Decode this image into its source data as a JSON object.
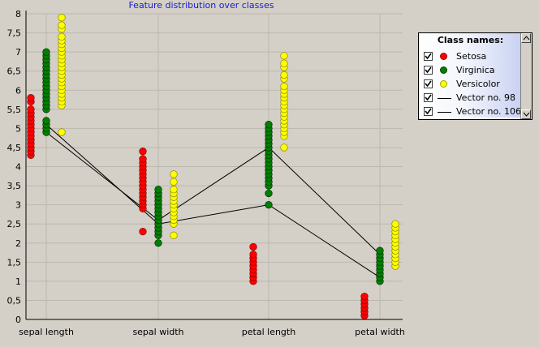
{
  "chart_data": {
    "type": "scatter",
    "title": "Feature distribution over classes",
    "categories": [
      "sepal length",
      "sepal width",
      "petal length",
      "petal width"
    ],
    "ylim": [
      0,
      8
    ],
    "yticks": [
      "0",
      "0,5",
      "1",
      "1,5",
      "2",
      "2,5",
      "3",
      "3,5",
      "4",
      "4,5",
      "5",
      "5,5",
      "6",
      "6,5",
      "7",
      "7,5",
      "8"
    ],
    "series": [
      {
        "name": "Setosa",
        "kind": "points",
        "color": "#ff0000",
        "points": [
          [
            0,
            4.3
          ],
          [
            0,
            4.4
          ],
          [
            0,
            4.5
          ],
          [
            0,
            4.6
          ],
          [
            0,
            4.7
          ],
          [
            0,
            4.8
          ],
          [
            0,
            4.9
          ],
          [
            0,
            5.0
          ],
          [
            0,
            5.1
          ],
          [
            0,
            5.2
          ],
          [
            0,
            5.3
          ],
          [
            0,
            5.4
          ],
          [
            0,
            5.5
          ],
          [
            0,
            5.7
          ],
          [
            0,
            5.8
          ],
          [
            1,
            2.3
          ],
          [
            1,
            2.9
          ],
          [
            1,
            3.0
          ],
          [
            1,
            3.1
          ],
          [
            1,
            3.2
          ],
          [
            1,
            3.3
          ],
          [
            1,
            3.4
          ],
          [
            1,
            3.5
          ],
          [
            1,
            3.6
          ],
          [
            1,
            3.7
          ],
          [
            1,
            3.8
          ],
          [
            1,
            3.9
          ],
          [
            1,
            4.0
          ],
          [
            1,
            4.1
          ],
          [
            1,
            4.2
          ],
          [
            1,
            4.4
          ],
          [
            2,
            1.0
          ],
          [
            2,
            1.1
          ],
          [
            2,
            1.2
          ],
          [
            2,
            1.3
          ],
          [
            2,
            1.4
          ],
          [
            2,
            1.5
          ],
          [
            2,
            1.6
          ],
          [
            2,
            1.7
          ],
          [
            2,
            1.9
          ],
          [
            3,
            0.1
          ],
          [
            3,
            0.2
          ],
          [
            3,
            0.3
          ],
          [
            3,
            0.4
          ],
          [
            3,
            0.5
          ],
          [
            3,
            0.6
          ]
        ]
      },
      {
        "name": "Virginica",
        "kind": "points",
        "color": "#008000",
        "points": [
          [
            0,
            4.9
          ],
          [
            0,
            5.0
          ],
          [
            0,
            5.1
          ],
          [
            0,
            5.2
          ],
          [
            0,
            5.5
          ],
          [
            0,
            5.6
          ],
          [
            0,
            5.7
          ],
          [
            0,
            5.8
          ],
          [
            0,
            5.9
          ],
          [
            0,
            6.0
          ],
          [
            0,
            6.1
          ],
          [
            0,
            6.2
          ],
          [
            0,
            6.3
          ],
          [
            0,
            6.4
          ],
          [
            0,
            6.5
          ],
          [
            0,
            6.6
          ],
          [
            0,
            6.7
          ],
          [
            0,
            6.8
          ],
          [
            0,
            6.9
          ],
          [
            0,
            7.0
          ],
          [
            1,
            2.0
          ],
          [
            1,
            2.2
          ],
          [
            1,
            2.3
          ],
          [
            1,
            2.4
          ],
          [
            1,
            2.5
          ],
          [
            1,
            2.6
          ],
          [
            1,
            2.7
          ],
          [
            1,
            2.8
          ],
          [
            1,
            2.9
          ],
          [
            1,
            3.0
          ],
          [
            1,
            3.1
          ],
          [
            1,
            3.2
          ],
          [
            1,
            3.3
          ],
          [
            1,
            3.4
          ],
          [
            2,
            3.0
          ],
          [
            2,
            3.3
          ],
          [
            2,
            3.5
          ],
          [
            2,
            3.6
          ],
          [
            2,
            3.7
          ],
          [
            2,
            3.8
          ],
          [
            2,
            3.9
          ],
          [
            2,
            4.0
          ],
          [
            2,
            4.1
          ],
          [
            2,
            4.2
          ],
          [
            2,
            4.3
          ],
          [
            2,
            4.4
          ],
          [
            2,
            4.5
          ],
          [
            2,
            4.6
          ],
          [
            2,
            4.7
          ],
          [
            2,
            4.8
          ],
          [
            2,
            4.9
          ],
          [
            2,
            5.0
          ],
          [
            2,
            5.1
          ],
          [
            3,
            1.0
          ],
          [
            3,
            1.1
          ],
          [
            3,
            1.2
          ],
          [
            3,
            1.3
          ],
          [
            3,
            1.4
          ],
          [
            3,
            1.5
          ],
          [
            3,
            1.6
          ],
          [
            3,
            1.7
          ],
          [
            3,
            1.8
          ]
        ]
      },
      {
        "name": "Versicolor",
        "kind": "points",
        "color": "#ffff00",
        "points": [
          [
            0,
            4.9
          ],
          [
            0,
            5.6
          ],
          [
            0,
            5.7
          ],
          [
            0,
            5.8
          ],
          [
            0,
            5.9
          ],
          [
            0,
            6.0
          ],
          [
            0,
            6.1
          ],
          [
            0,
            6.2
          ],
          [
            0,
            6.3
          ],
          [
            0,
            6.4
          ],
          [
            0,
            6.5
          ],
          [
            0,
            6.6
          ],
          [
            0,
            6.7
          ],
          [
            0,
            6.8
          ],
          [
            0,
            6.9
          ],
          [
            0,
            7.0
          ],
          [
            0,
            7.1
          ],
          [
            0,
            7.2
          ],
          [
            0,
            7.3
          ],
          [
            0,
            7.4
          ],
          [
            0,
            7.6
          ],
          [
            0,
            7.7
          ],
          [
            0,
            7.9
          ],
          [
            1,
            2.2
          ],
          [
            1,
            2.5
          ],
          [
            1,
            2.6
          ],
          [
            1,
            2.7
          ],
          [
            1,
            2.8
          ],
          [
            1,
            2.9
          ],
          [
            1,
            3.0
          ],
          [
            1,
            3.1
          ],
          [
            1,
            3.2
          ],
          [
            1,
            3.3
          ],
          [
            1,
            3.4
          ],
          [
            1,
            3.6
          ],
          [
            1,
            3.8
          ],
          [
            2,
            4.5
          ],
          [
            2,
            4.8
          ],
          [
            2,
            4.9
          ],
          [
            2,
            5.0
          ],
          [
            2,
            5.1
          ],
          [
            2,
            5.2
          ],
          [
            2,
            5.3
          ],
          [
            2,
            5.4
          ],
          [
            2,
            5.5
          ],
          [
            2,
            5.6
          ],
          [
            2,
            5.7
          ],
          [
            2,
            5.8
          ],
          [
            2,
            5.9
          ],
          [
            2,
            6.0
          ],
          [
            2,
            6.1
          ],
          [
            2,
            6.3
          ],
          [
            2,
            6.4
          ],
          [
            2,
            6.6
          ],
          [
            2,
            6.7
          ],
          [
            2,
            6.9
          ],
          [
            3,
            1.4
          ],
          [
            3,
            1.5
          ],
          [
            3,
            1.6
          ],
          [
            3,
            1.7
          ],
          [
            3,
            1.8
          ],
          [
            3,
            1.9
          ],
          [
            3,
            2.0
          ],
          [
            3,
            2.1
          ],
          [
            3,
            2.2
          ],
          [
            3,
            2.3
          ],
          [
            3,
            2.4
          ],
          [
            3,
            2.5
          ]
        ]
      },
      {
        "name": "Vector no. 98",
        "kind": "line",
        "color": "#000000",
        "values": [
          5.1,
          2.5,
          3.0,
          1.1
        ]
      },
      {
        "name": "Vector no. 106",
        "kind": "line",
        "color": "#000000",
        "values": [
          4.9,
          2.6,
          4.5,
          1.7
        ]
      }
    ],
    "grid": true,
    "legend_position": "top-right"
  },
  "legend": {
    "title": "Class names:",
    "items": [
      {
        "label": "Setosa",
        "marker": "dot",
        "color": "#ff0000",
        "checked": true
      },
      {
        "label": "Virginica",
        "marker": "dot",
        "color": "#008000",
        "checked": true
      },
      {
        "label": "Versicolor",
        "marker": "dot",
        "color": "#ffff00",
        "checked": true
      },
      {
        "label": "Vector no. 98",
        "marker": "line",
        "color": "#000000",
        "checked": true
      },
      {
        "label": "Vector no. 106",
        "marker": "line",
        "color": "#000000",
        "checked": true
      }
    ]
  }
}
